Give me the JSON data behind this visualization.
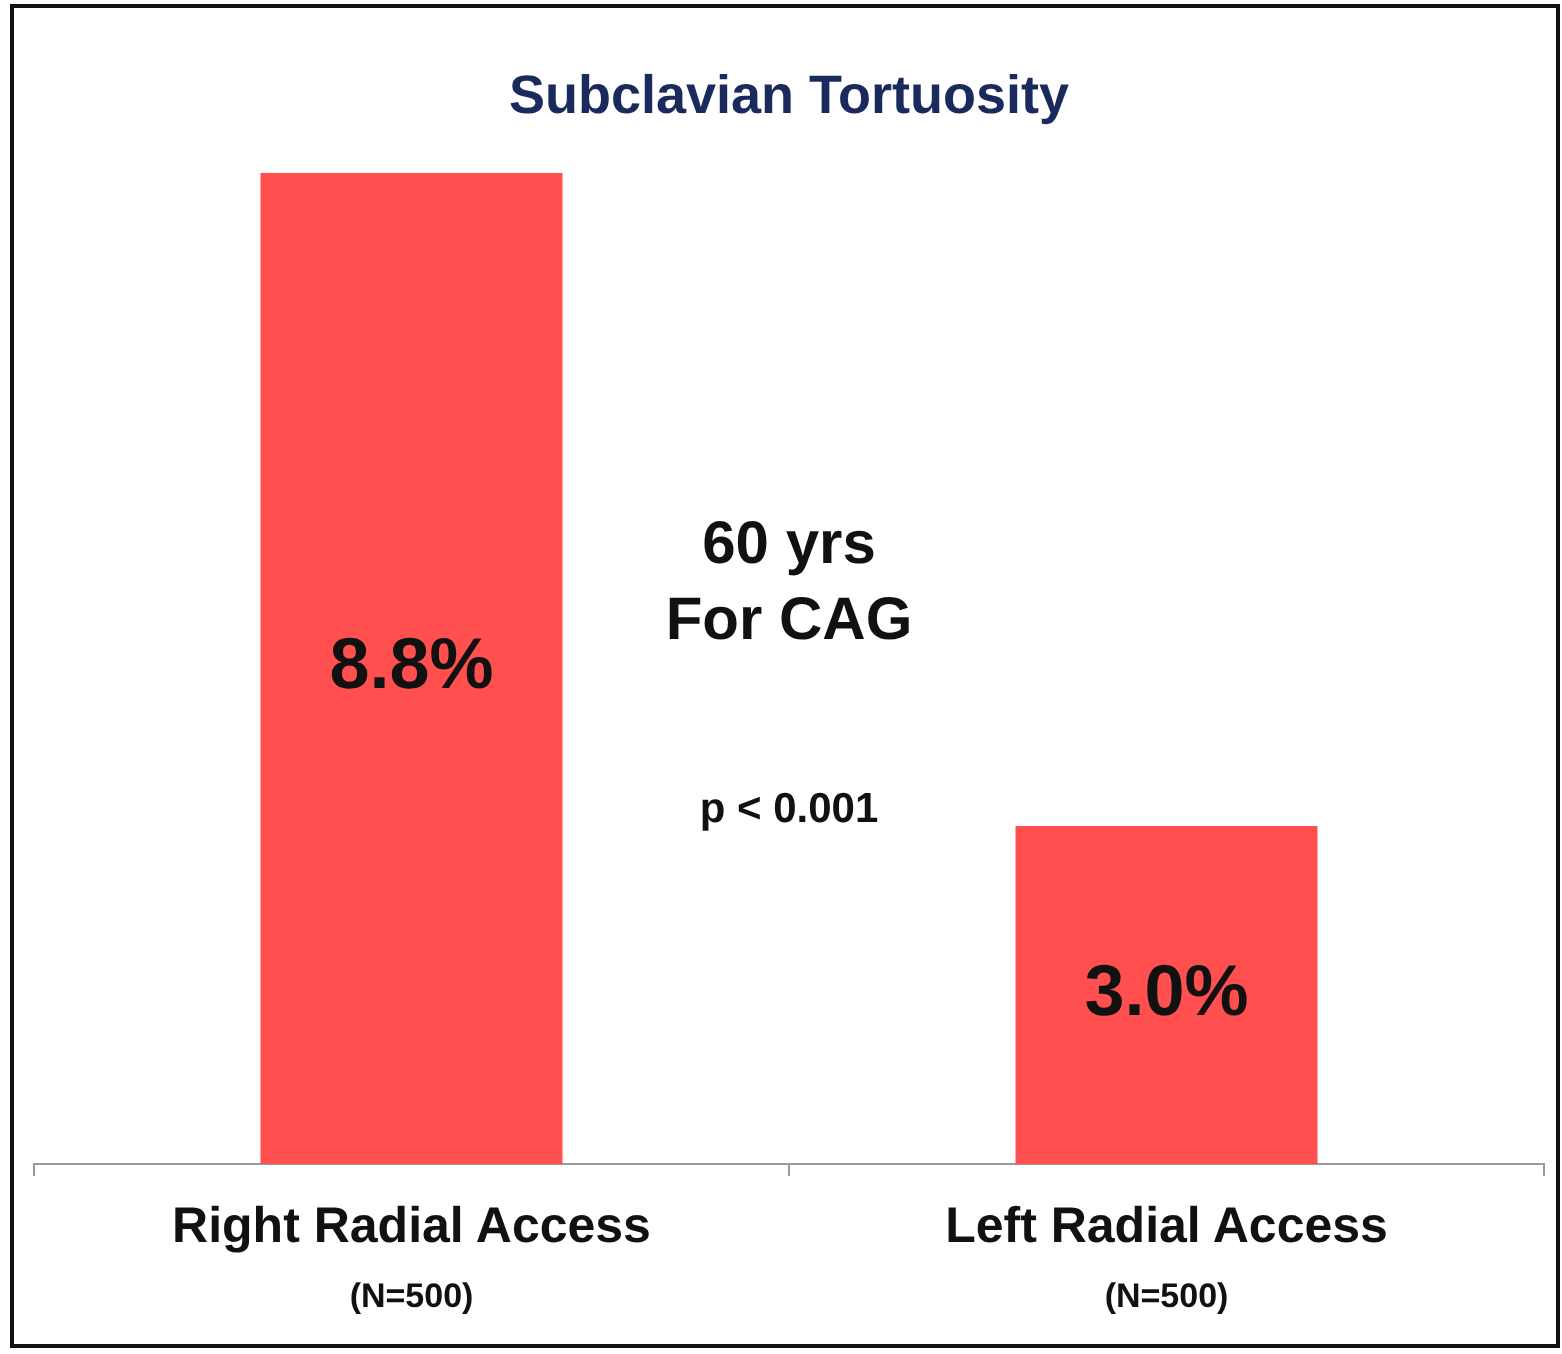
{
  "chart_data": {
    "type": "bar",
    "title": "Subclavian Tortuosity",
    "categories": [
      "Right Radial Access\n(N=500)",
      "Left Radial Access\n(N=500)"
    ],
    "values": [
      8.8,
      3.0
    ],
    "color": "#ff4f4f",
    "value_labels": [
      "8.8%",
      "3.0%"
    ],
    "annotations": [
      "60 yrs\nFor CAG",
      "p < 0.001"
    ]
  }
}
